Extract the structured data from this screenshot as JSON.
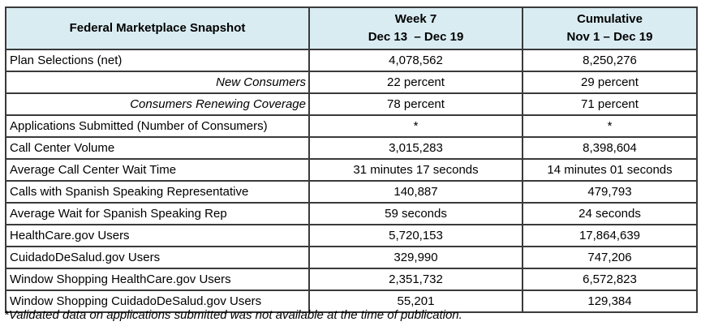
{
  "table": {
    "header": {
      "title": "Federal Marketplace Snapshot",
      "week_col": "Week 7\nDec 13  – Dec 19",
      "cumulative_col": "Cumulative\nNov 1 – Dec 19"
    },
    "rows": [
      {
        "label": "Plan Selections (net)",
        "align": "left",
        "week": "4,078,562",
        "cumulative": "8,250,276"
      },
      {
        "label": "New Consumers",
        "align": "right",
        "week": "22 percent",
        "cumulative": "29 percent"
      },
      {
        "label": "Consumers Renewing Coverage",
        "align": "right",
        "week": "78 percent",
        "cumulative": "71 percent"
      },
      {
        "label": "Applications Submitted (Number of Consumers)",
        "align": "left",
        "week": "*",
        "cumulative": "*"
      },
      {
        "label": "Call Center Volume",
        "align": "left",
        "week": "3,015,283",
        "cumulative": "8,398,604"
      },
      {
        "label": "Average Call Center Wait Time",
        "align": "left",
        "week": "31 minutes 17 seconds",
        "cumulative": "14 minutes 01 seconds"
      },
      {
        "label": "Calls with Spanish Speaking Representative",
        "align": "left",
        "week": "140,887",
        "cumulative": "479,793"
      },
      {
        "label": "Average Wait for Spanish Speaking Rep",
        "align": "left",
        "week": "59 seconds",
        "cumulative": "24 seconds"
      },
      {
        "label": "HealthCare.gov Users",
        "align": "left",
        "week": "5,720,153",
        "cumulative": "17,864,639"
      },
      {
        "label": "CuidadoDeSalud.gov Users",
        "align": "left",
        "week": "329,990",
        "cumulative": "747,206"
      },
      {
        "label": "Window Shopping HealthCare.gov Users",
        "align": "left",
        "week": "2,351,732",
        "cumulative": "6,572,823"
      },
      {
        "label": "Window Shopping CuidadoDeSalud.gov Users",
        "align": "left",
        "week": "55,201",
        "cumulative": "129,384"
      }
    ],
    "footnote": "*Validated data on applications submitted was not available at the time of publication.",
    "colors": {
      "header_bg": "#d9ecf2",
      "border": "#3a3a3a",
      "text": "#000000",
      "background": "#ffffff"
    }
  }
}
